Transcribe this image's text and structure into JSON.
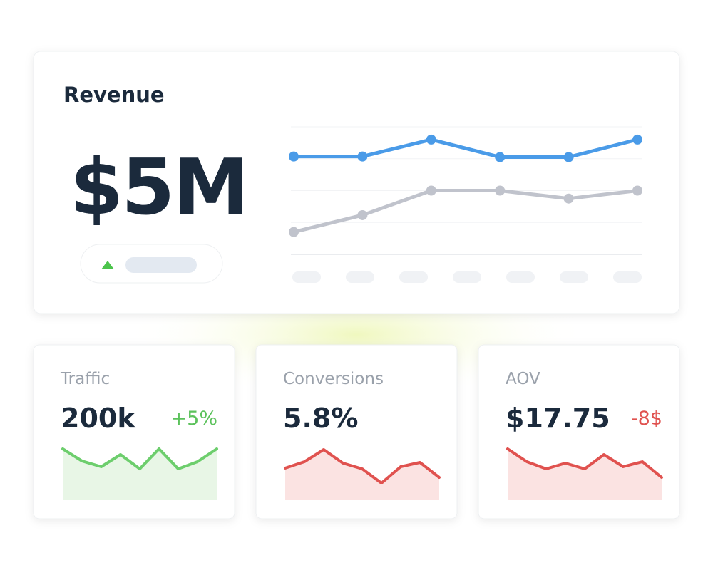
{
  "revenue": {
    "title": "Revenue",
    "value": "$5M",
    "chart_data": {
      "type": "line",
      "ylim": [
        0,
        4
      ],
      "yticks": [
        0,
        1,
        2,
        3,
        4
      ],
      "grid": true,
      "series": [
        {
          "color": "#4a9be8",
          "values": [
            3.07,
            3.07,
            3.6,
            3.05,
            3.05,
            3.6
          ]
        },
        {
          "color": "#c0c3cc",
          "values": [
            0.7,
            1.23,
            2.0,
            2.0,
            1.75,
            2.0
          ]
        }
      ]
    }
  },
  "cards": [
    {
      "title": "Traffic",
      "value": "200k",
      "change": "+5%",
      "change_color": "#5cc25c",
      "chart_data": {
        "type": "area",
        "color": "#6dce6d",
        "fill": "#e8f6e6",
        "ylim": [
          0,
          80
        ],
        "values": [
          72,
          55,
          47,
          64,
          44,
          72,
          44,
          54,
          72
        ]
      }
    },
    {
      "title": "Conversions",
      "value": "5.8%",
      "chart_data": {
        "type": "area",
        "color": "#e0524f",
        "fill": "#fbe3e2",
        "ylim": [
          0,
          80
        ],
        "values": [
          45,
          54,
          71,
          52,
          44,
          24,
          47,
          53,
          32
        ]
      }
    },
    {
      "title": "AOV",
      "value": "$17.75",
      "change": "-8$",
      "change_color": "#e0524f",
      "chart_data": {
        "type": "area",
        "color": "#e0524f",
        "fill": "#fbe3e2",
        "ylim": [
          0,
          80
        ],
        "values": [
          72,
          54,
          44,
          52,
          44,
          64,
          47,
          54,
          32
        ]
      }
    }
  ]
}
